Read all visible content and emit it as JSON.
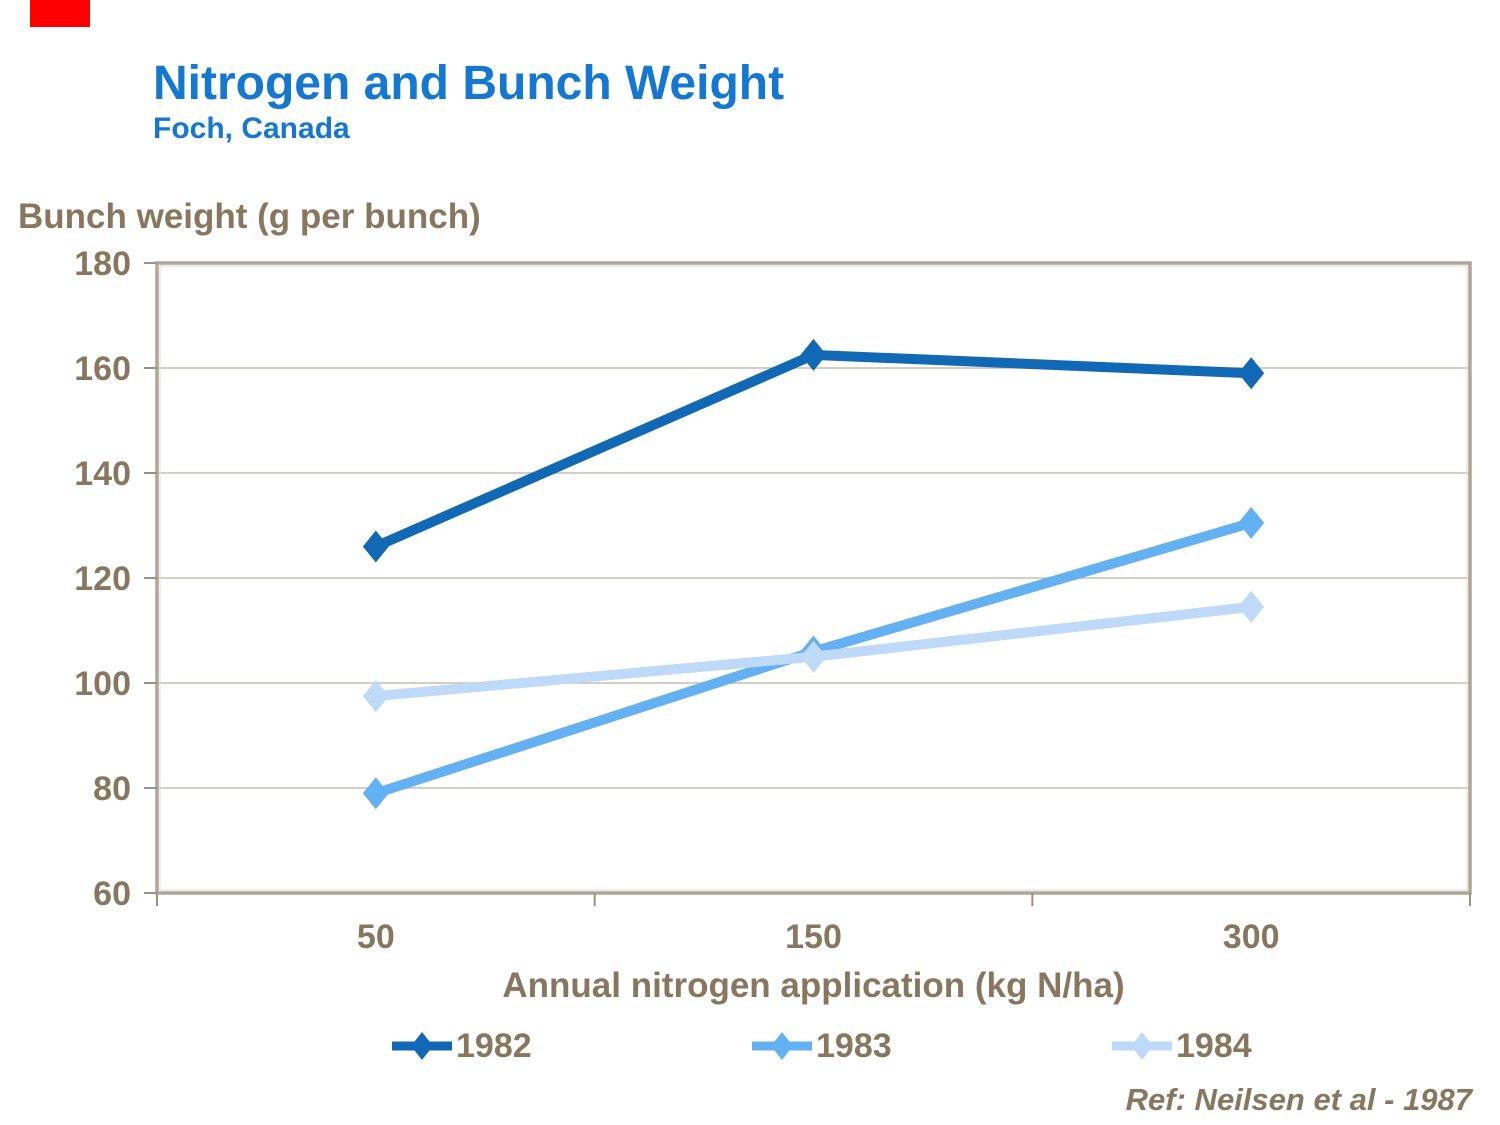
{
  "header": {
    "title": "Nitrogen and Bunch Weight",
    "subtitle": "Foch, Canada"
  },
  "axes": {
    "y_title": "Bunch weight (g per bunch)",
    "x_title": "Annual nitrogen application (kg N/ha)"
  },
  "footer": {
    "ref": "Ref: Neilsen et al - 1987"
  },
  "colors": {
    "title_blue": "#1478d2",
    "text_brown": "#87775f",
    "gridline": "#c7beb1",
    "frame": "#b0a697",
    "frame_inner": "#e6e1d7",
    "tick": "#9a9184",
    "red_accent": "#fe0000"
  },
  "chart_data": {
    "type": "line",
    "title": "Nitrogen and Bunch Weight",
    "subtitle": "Foch, Canada",
    "xlabel": "Annual nitrogen application (kg N/ha)",
    "ylabel": "Bunch weight (g per bunch)",
    "categories": [
      "50",
      "150",
      "300"
    ],
    "series": [
      {
        "name": "1982",
        "color": "#1169b5",
        "values": [
          126,
          162.5,
          159
        ]
      },
      {
        "name": "1983",
        "color": "#63b1f2",
        "values": [
          79,
          106,
          130.5
        ]
      },
      {
        "name": "1984",
        "color": "#bedaf8",
        "values": [
          97.5,
          105,
          114.5
        ]
      }
    ],
    "ylim": [
      60,
      180
    ],
    "ytick_step": 20,
    "ytick_labels": [
      "180",
      "160",
      "140",
      "120",
      "100",
      "80",
      "60"
    ],
    "grid": true,
    "legend_position": "bottom"
  }
}
